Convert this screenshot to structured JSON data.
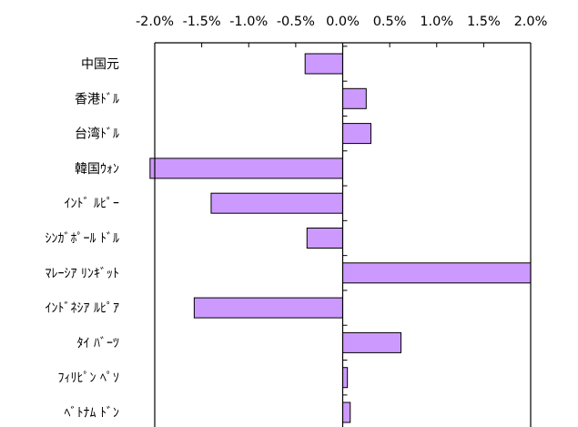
{
  "chart_data": {
    "type": "bar",
    "orientation": "horizontal",
    "categories": [
      "中国元",
      "香港ﾄﾞﾙ",
      "台湾ﾄﾞﾙ",
      "韓国ｳｫﾝ",
      "ｲﾝﾄﾞ ﾙﾋﾟｰ",
      "ｼﾝｶﾞﾎﾟｰﾙ ﾄﾞﾙ",
      "ﾏﾚｰｼｱ ﾘﾝｷﾞｯﾄ",
      "ｲﾝﾄﾞﾈｼｱ ﾙﾋﾟｱ",
      "ﾀｲ ﾊﾞｰﾂ",
      "ﾌｨﾘﾋﾟﾝ ﾍﾟｿ",
      "ﾍﾞﾄﾅﾑ ﾄﾞﾝ"
    ],
    "values": [
      -0.4,
      0.25,
      0.3,
      -2.05,
      -1.4,
      -0.38,
      2.0,
      -1.58,
      0.62,
      0.05,
      0.08
    ],
    "xlim": [
      -2.0,
      2.0
    ],
    "xticks": [
      "-2.0%",
      "-1.5%",
      "-1.0%",
      "-0.5%",
      "0.0%",
      "0.5%",
      "1.0%",
      "1.5%",
      "2.0%"
    ],
    "xtick_values": [
      -2.0,
      -1.5,
      -1.0,
      -0.5,
      0.0,
      0.5,
      1.0,
      1.5,
      2.0
    ],
    "axis_position": "top",
    "grid": false,
    "legend": "none",
    "bar_color": "#cc99ff",
    "bar_edge_color": "#000000",
    "title": "",
    "xlabel": "",
    "ylabel": ""
  }
}
